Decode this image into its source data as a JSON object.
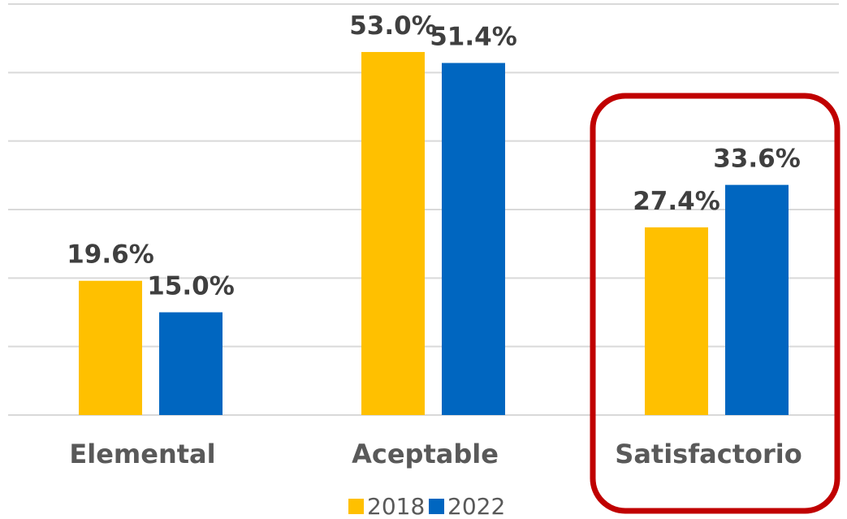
{
  "colors": {
    "series_2018": "#FFC000",
    "series_2022": "#0066C0",
    "gridline": "#D9D9D9",
    "highlight": "#C00000"
  },
  "chart_data": {
    "type": "bar",
    "categories": [
      "Elemental",
      "Aceptable",
      "Satisfactorio"
    ],
    "series": [
      {
        "name": "2018",
        "values": [
          19.6,
          53.0,
          27.4
        ],
        "labels": [
          "19.6%",
          "53.0%",
          "27.4%"
        ]
      },
      {
        "name": "2022",
        "values": [
          15.0,
          51.4,
          33.6
        ],
        "labels": [
          "15.0%",
          "51.4%",
          "33.6%"
        ]
      }
    ],
    "title": "",
    "xlabel": "",
    "ylabel": "",
    "ylim": [
      0,
      60
    ],
    "grid": true,
    "legend": "bottom",
    "highlighted_category": "Satisfactorio"
  }
}
